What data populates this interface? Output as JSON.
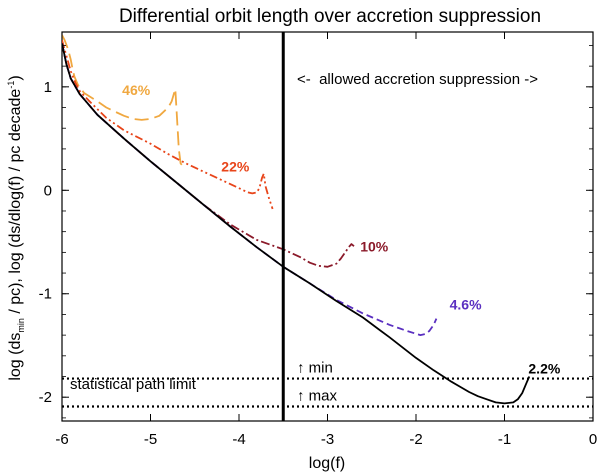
{
  "chart_data": {
    "type": "line",
    "title": "Differential orbit length over accretion suppression",
    "xlabel": "log(f)",
    "ylabel_parts": [
      "log (ds",
      "min",
      " / pc), log (ds/dlog(f) / pc decade",
      "-1",
      ")"
    ],
    "xlim": [
      -6,
      0
    ],
    "ylim": [
      -2.23,
      1.53
    ],
    "xticks": [
      -6,
      -5,
      -4,
      -3,
      -2,
      -1,
      0
    ],
    "xtick_labels": [
      "-6",
      "-5",
      "-4",
      "-3",
      "-2",
      "-1",
      "0"
    ],
    "yticks": [
      -2,
      -1,
      0,
      1
    ],
    "ytick_labels": [
      "-2",
      "-1",
      "0",
      "1"
    ],
    "vertical_line": {
      "x": -3.5
    },
    "allowed_region_label": "<-  allowed accretion suppression ->",
    "statistical_limits": {
      "label": "statistical path limit",
      "min": {
        "y": -1.82,
        "label": "↑ min"
      },
      "max": {
        "y": -2.09,
        "label": "↑ max"
      }
    },
    "series": [
      {
        "name": "46%",
        "color": "#f0a840",
        "dash": "14,6",
        "label_pos": [
          -5.32,
          0.92
        ],
        "x": [
          -6.0,
          -5.97,
          -5.93,
          -5.9,
          -5.88,
          -5.86,
          -5.82,
          -5.75,
          -5.6,
          -5.5,
          -5.4,
          -5.3,
          -5.2,
          -5.1,
          -5.0,
          -4.9,
          -4.8,
          -4.76,
          -4.74,
          -4.72,
          -4.7,
          -4.68,
          -4.66,
          -4.64
        ],
        "y": [
          1.5,
          1.45,
          1.36,
          1.26,
          1.17,
          1.1,
          1.02,
          0.94,
          0.86,
          0.8,
          0.76,
          0.72,
          0.69,
          0.68,
          0.69,
          0.72,
          0.8,
          0.86,
          0.92,
          0.98,
          0.7,
          0.4,
          0.26,
          0.24
        ]
      },
      {
        "name": "22%",
        "color": "#e8451a",
        "dash": "8,3,2,3,2,3",
        "label_pos": [
          -4.2,
          0.18
        ],
        "x": [
          -6.0,
          -5.95,
          -5.9,
          -5.85,
          -5.8,
          -5.7,
          -5.5,
          -5.3,
          -5.0,
          -4.8,
          -4.6,
          -4.4,
          -4.2,
          -4.0,
          -3.9,
          -3.85,
          -3.8,
          -3.77,
          -3.74,
          -3.72,
          -3.7,
          -3.66,
          -3.62
        ],
        "y": [
          1.45,
          1.3,
          1.15,
          1.04,
          0.96,
          0.87,
          0.7,
          0.58,
          0.45,
          0.35,
          0.26,
          0.18,
          0.1,
          0.02,
          -0.02,
          -0.03,
          -0.02,
          0.02,
          0.12,
          0.16,
          0.04,
          -0.08,
          -0.18
        ]
      },
      {
        "name": "10%",
        "color": "#8b1a2a",
        "dash": "9,3,2,3",
        "label_pos": [
          -2.63,
          -0.59
        ],
        "x": [
          -6.0,
          -5.95,
          -5.9,
          -5.8,
          -5.6,
          -5.3,
          -5.0,
          -4.7,
          -4.4,
          -4.1,
          -3.8,
          -3.5,
          -3.3,
          -3.2,
          -3.1,
          -3.0,
          -2.9,
          -2.85,
          -2.8,
          -2.76,
          -2.73,
          -2.7
        ],
        "y": [
          1.42,
          1.22,
          1.08,
          0.93,
          0.73,
          0.5,
          0.28,
          0.07,
          -0.14,
          -0.33,
          -0.48,
          -0.57,
          -0.65,
          -0.7,
          -0.73,
          -0.74,
          -0.71,
          -0.66,
          -0.6,
          -0.55,
          -0.52,
          -0.54
        ]
      },
      {
        "name": "4.6%",
        "color": "#5a2fc0",
        "dash": "7,4",
        "label_pos": [
          -1.62,
          -1.15
        ],
        "x": [
          -6.0,
          -5.95,
          -5.9,
          -5.8,
          -5.6,
          -5.3,
          -5.0,
          -4.7,
          -4.4,
          -4.1,
          -3.8,
          -3.5,
          -3.2,
          -2.9,
          -2.6,
          -2.3,
          -2.1,
          -1.95,
          -1.9,
          -1.85,
          -1.8,
          -1.77
        ],
        "y": [
          1.42,
          1.22,
          1.08,
          0.93,
          0.73,
          0.5,
          0.28,
          0.07,
          -0.14,
          -0.35,
          -0.55,
          -0.74,
          -0.9,
          -1.06,
          -1.19,
          -1.3,
          -1.36,
          -1.4,
          -1.39,
          -1.36,
          -1.3,
          -1.24
        ]
      },
      {
        "name": "2.2%",
        "color": "#000000",
        "dash": "",
        "label_pos": [
          -0.73,
          -1.77
        ],
        "x": [
          -6.0,
          -5.95,
          -5.9,
          -5.8,
          -5.6,
          -5.3,
          -5.0,
          -4.7,
          -4.4,
          -4.1,
          -3.8,
          -3.5,
          -3.2,
          -2.9,
          -2.6,
          -2.3,
          -2.0,
          -1.8,
          -1.6,
          -1.5,
          -1.4,
          -1.3,
          -1.2,
          -1.1,
          -1.0,
          -0.9,
          -0.85,
          -0.8,
          -0.75,
          -0.72
        ],
        "y": [
          1.42,
          1.22,
          1.08,
          0.93,
          0.73,
          0.5,
          0.28,
          0.07,
          -0.14,
          -0.35,
          -0.55,
          -0.74,
          -0.9,
          -1.07,
          -1.23,
          -1.42,
          -1.62,
          -1.74,
          -1.85,
          -1.9,
          -1.95,
          -1.99,
          -2.02,
          -2.05,
          -2.06,
          -2.05,
          -2.02,
          -1.96,
          -1.86,
          -1.8
        ]
      }
    ]
  }
}
